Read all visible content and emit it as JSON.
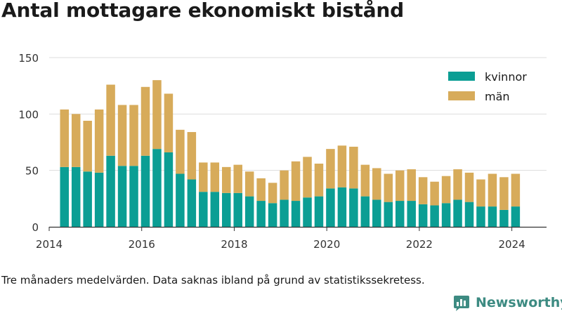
{
  "title": "Antal mottagare ekonomiskt bistånd",
  "caption": "Tre månaders medelvärden. Data saknas ibland på grund av statistikssekretess.",
  "brand": "Newsworthy",
  "colors": {
    "kvinnor": "#0b9e94",
    "man": "#d7ab5a",
    "grid": "#dddddd",
    "axis": "#333333",
    "brand": "#3d8b82"
  },
  "chart_data": {
    "type": "bar",
    "stacked": true,
    "title": "Antal mottagare ekonomiskt bistånd",
    "xlabel": "",
    "ylabel": "",
    "ylim": [
      0,
      150
    ],
    "xlim": [
      2014,
      2024.75
    ],
    "y_ticks": [
      0,
      50,
      100,
      150
    ],
    "x_ticks": [
      2014,
      2016,
      2018,
      2020,
      2022,
      2024
    ],
    "grid": true,
    "legend": "top-right",
    "x": [
      2014.33,
      2014.58,
      2014.83,
      2015.08,
      2015.33,
      2015.58,
      2015.83,
      2016.08,
      2016.33,
      2016.58,
      2016.83,
      2017.08,
      2017.33,
      2017.58,
      2017.83,
      2018.08,
      2018.33,
      2018.58,
      2018.83,
      2019.08,
      2019.33,
      2019.58,
      2019.83,
      2020.08,
      2020.33,
      2020.58,
      2020.83,
      2021.08,
      2021.33,
      2021.58,
      2021.83,
      2022.08,
      2022.33,
      2022.58,
      2022.83,
      2023.08,
      2023.33,
      2023.58,
      2023.83,
      2024.08
    ],
    "series": [
      {
        "name": "kvinnor",
        "values": [
          53,
          53,
          49,
          48,
          63,
          54,
          54,
          63,
          69,
          66,
          47,
          42,
          31,
          31,
          30,
          30,
          27,
          23,
          21,
          24,
          23,
          26,
          27,
          34,
          35,
          34,
          27,
          24,
          22,
          23,
          23,
          20,
          19,
          21,
          24,
          22,
          18,
          18,
          15,
          18
        ]
      },
      {
        "name": "män",
        "values": [
          51,
          47,
          45,
          56,
          63,
          54,
          54,
          61,
          61,
          52,
          39,
          42,
          26,
          26,
          23,
          25,
          22,
          20,
          18,
          26,
          35,
          36,
          29,
          35,
          37,
          37,
          28,
          28,
          25,
          27,
          28,
          24,
          21,
          24,
          27,
          26,
          24,
          29,
          29,
          29
        ]
      }
    ]
  }
}
